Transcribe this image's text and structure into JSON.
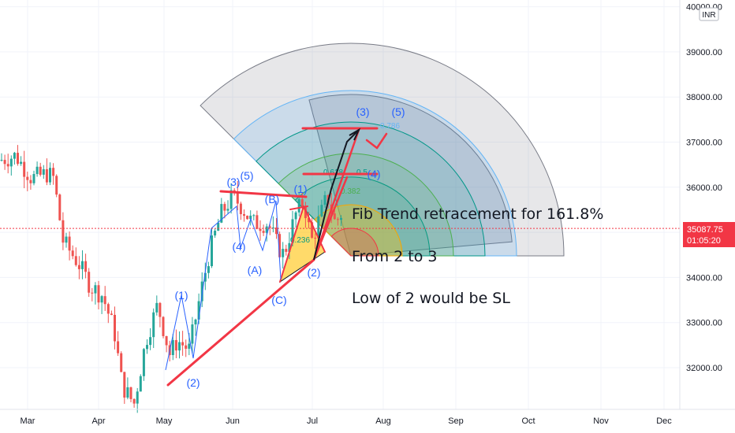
{
  "chart_data": {
    "type": "candlestick",
    "instrument_currency": "INR",
    "x_labels": [
      "Mar",
      "Apr",
      "May",
      "Jun",
      "Jul",
      "Aug",
      "Sep",
      "Oct",
      "Nov",
      "Dec"
    ],
    "y_ticks": [
      "32000.00",
      "33000.00",
      "34000.00",
      "35000.00",
      "36000.00",
      "37000.00",
      "38000.00",
      "39000.00",
      "40000.00"
    ],
    "ylim": [
      31100,
      40100
    ],
    "last_price": "35087.75",
    "countdown": "01:05:20",
    "colors": {
      "up": "#26a69a",
      "down": "#ef5350",
      "drawing": "#f23645",
      "wave_labels": "#2962ff"
    },
    "annotations": [
      "Fib Trend retracement for 161.8%",
      "From 2 to 3",
      "Low of 2 would be SL"
    ],
    "wave_labels": [
      "(1)",
      "(2)",
      "(3)",
      "(4)",
      "(5)",
      "(A)",
      "(B)",
      "(C)",
      "(1)",
      "(2)",
      "(3)",
      "(4)",
      "(5)"
    ],
    "fib_levels": [
      "0.786",
      "0.618",
      "0.5",
      "0.382",
      "0.236"
    ]
  }
}
